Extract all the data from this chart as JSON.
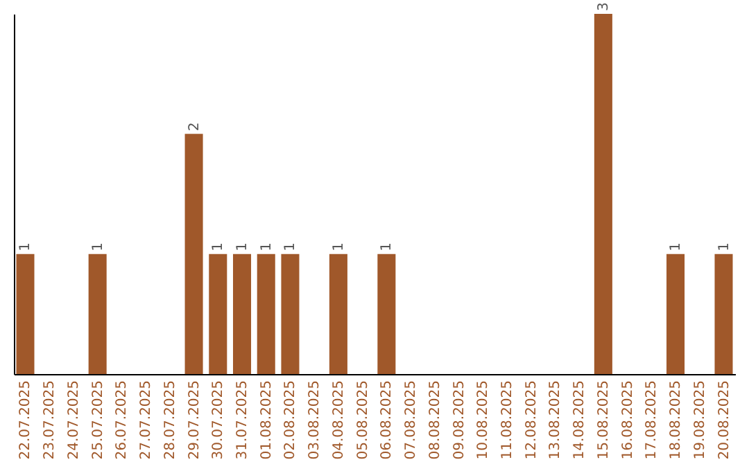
{
  "chart_data": {
    "type": "bar",
    "color": "#a0582a",
    "categories": [
      "22.07.2025",
      "23.07.2025",
      "24.07.2025",
      "25.07.2025",
      "26.07.2025",
      "27.07.2025",
      "28.07.2025",
      "29.07.2025",
      "30.07.2025",
      "31.07.2025",
      "01.08.2025",
      "02.08.2025",
      "03.08.2025",
      "04.08.2025",
      "05.08.2025",
      "06.08.2025",
      "07.08.2025",
      "08.08.2025",
      "09.08.2025",
      "10.08.2025",
      "11.08.2025",
      "12.08.2025",
      "13.08.2025",
      "14.08.2025",
      "15.08.2025",
      "16.08.2025",
      "17.08.2025",
      "18.08.2025",
      "19.08.2025",
      "20.08.2025"
    ],
    "values": [
      1,
      0,
      0,
      1,
      0,
      0,
      0,
      2,
      1,
      1,
      1,
      1,
      0,
      1,
      0,
      1,
      0,
      0,
      0,
      0,
      0,
      0,
      0,
      0,
      3,
      0,
      0,
      1,
      0,
      1
    ],
    "value_labels": [
      "1",
      null,
      null,
      "1",
      null,
      null,
      null,
      "2",
      "1",
      "1",
      "1",
      "1",
      null,
      "1",
      null,
      "1",
      null,
      null,
      null,
      null,
      null,
      null,
      null,
      null,
      "3",
      null,
      null,
      "1",
      null,
      "1"
    ],
    "grid": false
  }
}
